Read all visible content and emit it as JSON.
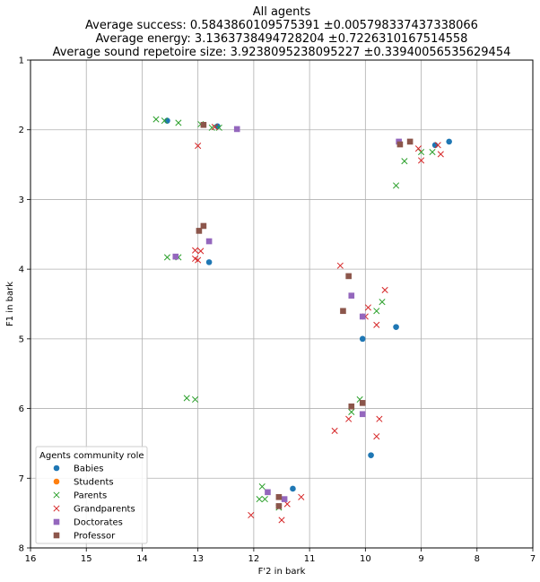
{
  "chart_data": {
    "type": "scatter",
    "title": [
      "All agents",
      "Average success: 0.5843860109575391 ±0.005798337437338066",
      "Average energy: 3.1363738494728204 ±0.7226310167514558",
      "Average sound repetoire size: 3.9238095238095227 ±0.33940056535629454"
    ],
    "xlabel": "F'2 in bark",
    "ylabel": "F1 in bark",
    "xlim": [
      16,
      7
    ],
    "ylim": [
      8,
      1
    ],
    "xticks": [
      16,
      15,
      14,
      13,
      12,
      11,
      10,
      9,
      8,
      7
    ],
    "yticks": [
      1,
      2,
      3,
      4,
      5,
      6,
      7,
      8
    ],
    "grid": true,
    "legend_title": "Agents community role",
    "legend_position": "lower-left",
    "series": [
      {
        "name": "Babies",
        "marker": "circle",
        "color": "#1f77b4",
        "points": [
          [
            13.55,
            1.87
          ],
          [
            12.65,
            1.95
          ],
          [
            12.8,
            3.9
          ],
          [
            8.75,
            2.22
          ],
          [
            8.5,
            2.17
          ],
          [
            10.05,
            5.0
          ],
          [
            9.45,
            4.83
          ],
          [
            11.3,
            7.15
          ],
          [
            9.9,
            6.67
          ]
        ]
      },
      {
        "name": "Students",
        "marker": "circle",
        "color": "#ff7f0e",
        "points": []
      },
      {
        "name": "Parents",
        "marker": "x",
        "color": "#2ca02c",
        "points": [
          [
            13.75,
            1.85
          ],
          [
            13.6,
            1.87
          ],
          [
            13.35,
            1.9
          ],
          [
            12.95,
            1.92
          ],
          [
            12.75,
            1.97
          ],
          [
            12.62,
            1.97
          ],
          [
            13.55,
            3.83
          ],
          [
            13.35,
            3.83
          ],
          [
            9.3,
            2.45
          ],
          [
            9.0,
            2.32
          ],
          [
            8.8,
            2.32
          ],
          [
            9.45,
            2.8
          ],
          [
            9.8,
            4.6
          ],
          [
            9.7,
            4.47
          ],
          [
            13.2,
            5.85
          ],
          [
            13.05,
            5.87
          ],
          [
            10.25,
            6.05
          ],
          [
            10.1,
            5.87
          ],
          [
            11.9,
            7.3
          ],
          [
            11.85,
            7.12
          ],
          [
            11.8,
            7.3
          ],
          [
            11.55,
            7.42
          ]
        ]
      },
      {
        "name": "Grandparents",
        "marker": "x",
        "color": "#d62728",
        "points": [
          [
            13.0,
            2.23
          ],
          [
            12.7,
            1.96
          ],
          [
            9.05,
            2.27
          ],
          [
            9.0,
            2.44
          ],
          [
            8.7,
            2.22
          ],
          [
            8.65,
            2.35
          ],
          [
            13.05,
            3.73
          ],
          [
            13.05,
            3.85
          ],
          [
            12.95,
            3.74
          ],
          [
            13.0,
            3.87
          ],
          [
            10.45,
            3.95
          ],
          [
            9.65,
            4.3
          ],
          [
            9.95,
            4.55
          ],
          [
            10.0,
            4.68
          ],
          [
            9.8,
            4.8
          ],
          [
            10.55,
            6.32
          ],
          [
            10.3,
            6.15
          ],
          [
            9.8,
            6.4
          ],
          [
            9.75,
            6.15
          ],
          [
            12.05,
            7.53
          ],
          [
            11.5,
            7.6
          ],
          [
            11.4,
            7.37
          ],
          [
            11.15,
            7.27
          ]
        ]
      },
      {
        "name": "Doctorates",
        "marker": "square",
        "color": "#9467bd",
        "points": [
          [
            12.3,
            1.99
          ],
          [
            12.8,
            3.6
          ],
          [
            13.4,
            3.82
          ],
          [
            9.4,
            2.17
          ],
          [
            10.25,
            4.38
          ],
          [
            10.05,
            4.68
          ],
          [
            10.05,
            6.08
          ],
          [
            11.75,
            7.2
          ],
          [
            11.45,
            7.3
          ]
        ]
      },
      {
        "name": "Professor",
        "marker": "square",
        "color": "#8c564b",
        "points": [
          [
            12.9,
            1.93
          ],
          [
            12.9,
            3.38
          ],
          [
            12.98,
            3.45
          ],
          [
            9.2,
            2.17
          ],
          [
            9.38,
            2.21
          ],
          [
            10.3,
            4.1
          ],
          [
            10.4,
            4.6
          ],
          [
            10.05,
            5.92
          ],
          [
            10.25,
            5.97
          ],
          [
            11.55,
            7.27
          ],
          [
            11.55,
            7.4
          ]
        ]
      }
    ]
  }
}
